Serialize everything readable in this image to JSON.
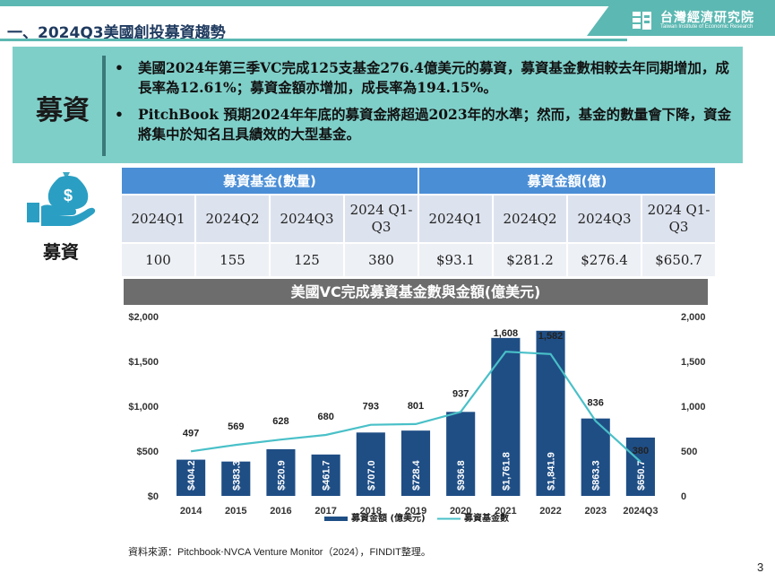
{
  "header": {
    "title": "一、2024Q3美國創投募資趨勢",
    "logo_cn": "台灣經濟研究院",
    "logo_en": "Taiwan Institute of Economic Research"
  },
  "summary": {
    "label": "募資",
    "bullets": [
      "美國2024年第三季VC完成125支基金276.4億美元的募資，募資基金數相較去年同期增加，成長率為12.61%；募資金額亦增加，成長率為194.15%。",
      "PitchBook 預期2024年年底的募資金將超過2023年的水準；然而，基金的數量會下降，資金將集中於知名且具績效的大型基金。"
    ]
  },
  "icon_label": "募資",
  "table": {
    "group_headers": [
      "募資基金(數量)",
      "募資金額(億)"
    ],
    "quarters": [
      "2024Q1",
      "2024Q2",
      "2024Q3",
      "2024 Q1-Q3",
      "2024Q1",
      "2024Q2",
      "2024Q3",
      "2024 Q1-Q3"
    ],
    "values": [
      "100",
      "155",
      "125",
      "380",
      "$93.1",
      "$281.2",
      "$276.4",
      "$650.7"
    ]
  },
  "chart_data": {
    "type": "bar",
    "title": "美國VC完成募資基金數與金額(億美元)",
    "categories": [
      "2014",
      "2015",
      "2016",
      "2017",
      "2018",
      "2019",
      "2020",
      "2021",
      "2022",
      "2023",
      "2024Q3"
    ],
    "series": [
      {
        "name": "募資金額 (億美元)",
        "type": "bar",
        "axis": "left",
        "values": [
          404.2,
          383.3,
          520.9,
          461.7,
          707.0,
          728.4,
          936.8,
          1761.8,
          1841.9,
          863.3,
          650.7
        ],
        "labels": [
          "$404.2",
          "$383.3",
          "$520.9",
          "$461.7",
          "$707.0",
          "$728.4",
          "$936.8",
          "$1,761.8",
          "$1,841.9",
          "$863.3",
          "$650.7"
        ]
      },
      {
        "name": "募資基金數",
        "type": "line",
        "axis": "right",
        "values": [
          497,
          569,
          628,
          680,
          793,
          801,
          937,
          1608,
          1582,
          836,
          380
        ],
        "labels": [
          "497",
          "569",
          "628",
          "680",
          "793",
          "801",
          "937",
          "1,608",
          "1,582",
          "836",
          "380"
        ]
      }
    ],
    "ylim_left": [
      0,
      2000
    ],
    "ylim_right": [
      0,
      2000
    ],
    "yticks_left": [
      "$0",
      "$500",
      "$1,000",
      "$1,500",
      "$2,000"
    ],
    "yticks_right": [
      "0",
      "500",
      "1,000",
      "1,500",
      "2,000"
    ],
    "legend_position": "bottom",
    "colors": {
      "bar": "#1f4e85",
      "line": "#49c0c8"
    }
  },
  "source": "資料來源：Pitchbook‧NVCA Venture Monitor（2024），FINDIT整理。",
  "page_number": "3"
}
